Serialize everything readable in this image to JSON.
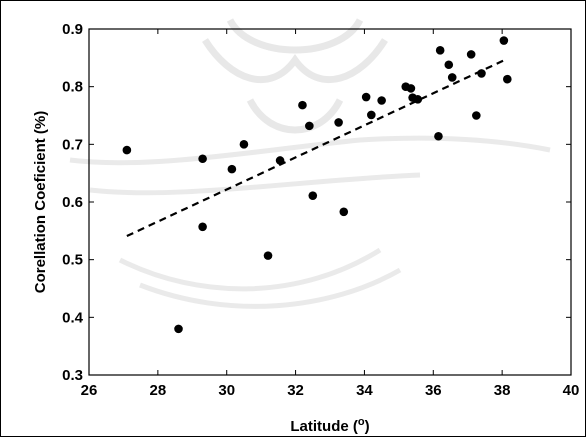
{
  "chart_data": {
    "type": "scatter",
    "title": "",
    "xlabel": "Latitude (°)",
    "ylabel": "Corellation Coeficient (%)",
    "xlim": [
      26,
      40
    ],
    "ylim": [
      0.3,
      0.9
    ],
    "xticks": [
      26,
      28,
      30,
      32,
      34,
      36,
      38,
      40
    ],
    "yticks": [
      0.3,
      0.4,
      0.5,
      0.6,
      0.7,
      0.8,
      0.9
    ],
    "grid": false,
    "marker_color": "#000000",
    "series": [
      {
        "points": [
          [
            27.1,
            0.69
          ],
          [
            28.6,
            0.38
          ],
          [
            29.3,
            0.557
          ],
          [
            29.3,
            0.675
          ],
          [
            30.15,
            0.657
          ],
          [
            30.5,
            0.7
          ],
          [
            31.2,
            0.507
          ],
          [
            31.55,
            0.672
          ],
          [
            32.2,
            0.768
          ],
          [
            32.4,
            0.732
          ],
          [
            32.5,
            0.611
          ],
          [
            33.25,
            0.738
          ],
          [
            33.4,
            0.583
          ],
          [
            34.05,
            0.782
          ],
          [
            34.2,
            0.751
          ],
          [
            34.5,
            0.776
          ],
          [
            35.2,
            0.8
          ],
          [
            35.35,
            0.797
          ],
          [
            35.4,
            0.781
          ],
          [
            35.55,
            0.778
          ],
          [
            36.15,
            0.714
          ],
          [
            36.2,
            0.863
          ],
          [
            36.45,
            0.838
          ],
          [
            36.55,
            0.816
          ],
          [
            37.1,
            0.856
          ],
          [
            37.25,
            0.75
          ],
          [
            37.4,
            0.823
          ],
          [
            38.05,
            0.88
          ],
          [
            38.15,
            0.813
          ]
        ]
      }
    ],
    "trendline": {
      "style": "dashed",
      "x": [
        27.1,
        38.1
      ],
      "y": [
        0.541,
        0.847
      ]
    }
  }
}
